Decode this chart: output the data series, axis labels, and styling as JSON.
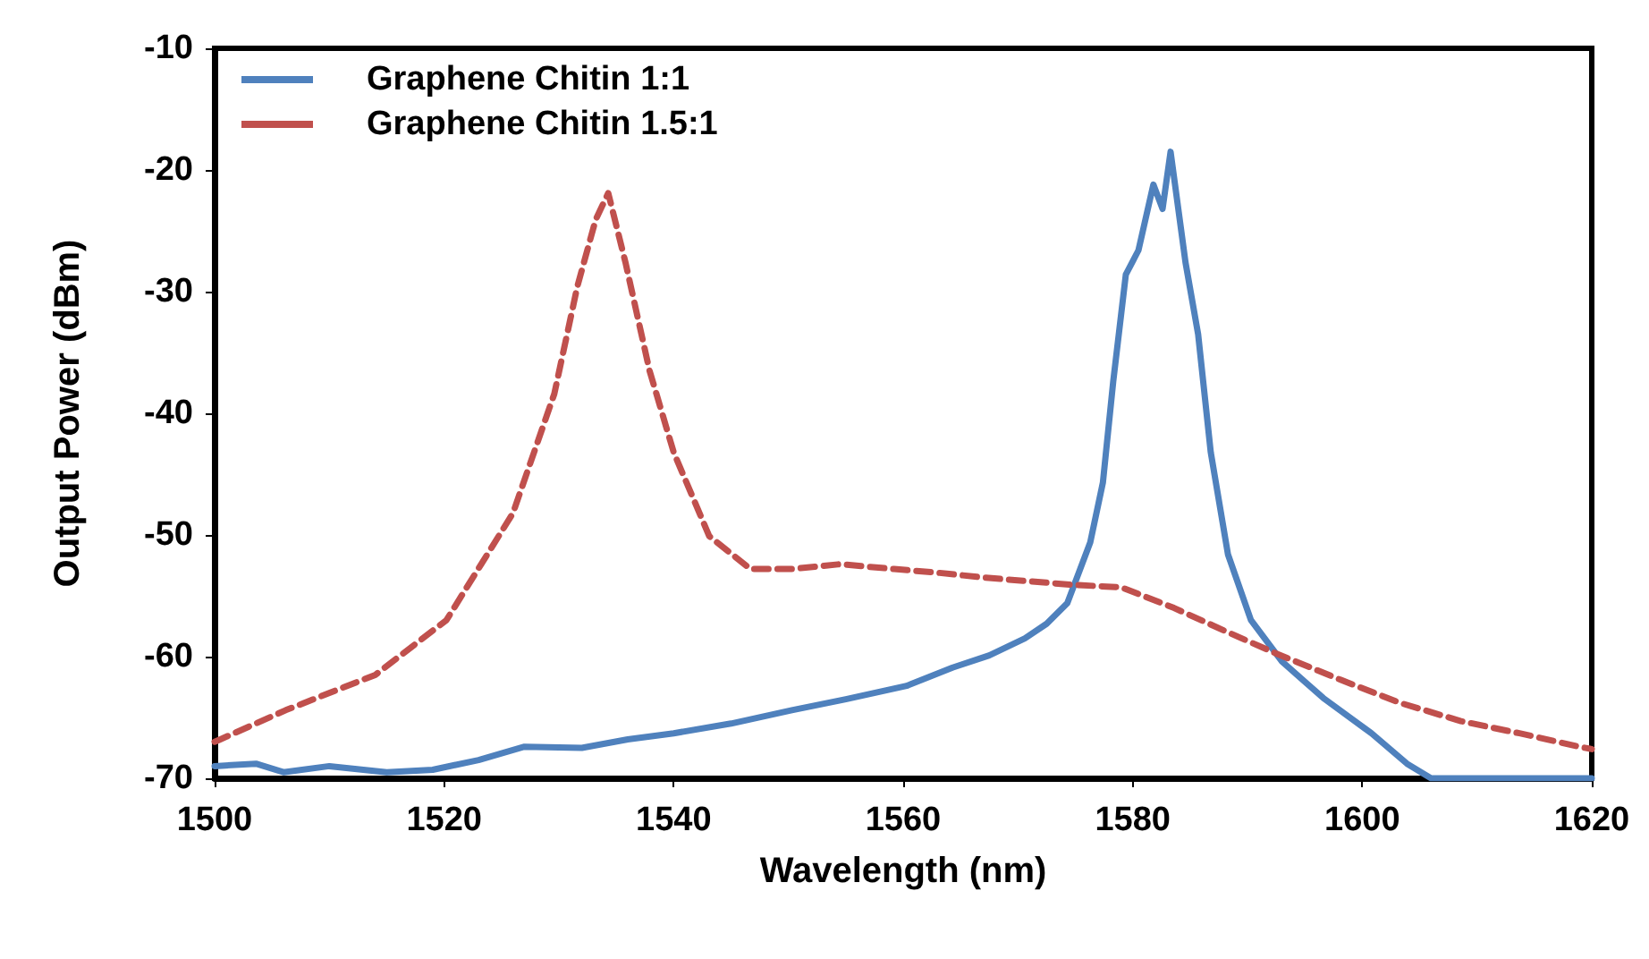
{
  "chart_data": {
    "type": "line",
    "xlabel": "Wavelength (nm)",
    "ylabel": "Output Power (dBm)",
    "xlim": [
      1500,
      1620
    ],
    "xticks": [
      1500,
      1520,
      1540,
      1560,
      1580,
      1600,
      1620
    ],
    "ylim": [
      -70,
      -10
    ],
    "yticks": [
      -70,
      -60,
      -50,
      -40,
      -30,
      -20,
      -10
    ],
    "grid": false,
    "legend": "top left",
    "marker": "none",
    "series": [
      {
        "name": "Graphene Chitin 1:1",
        "color": "#4f81bd",
        "line_style": "solid",
        "x": [
          1500,
          1503.6,
          1506,
          1510,
          1515,
          1519,
          1523,
          1527,
          1532,
          1536,
          1540,
          1545,
          1550.3,
          1555,
          1560.3,
          1564.3,
          1567.5,
          1570.6,
          1572.5,
          1574.3,
          1576.3,
          1577.4,
          1578.3,
          1579.4,
          1580.5,
          1581.8,
          1582.6,
          1583.3,
          1584.6,
          1585.7,
          1586.8,
          1588.3,
          1590.3,
          1593,
          1596.6,
          1600.8,
          1603.9,
          1606,
          1610,
          1615,
          1620
        ],
        "values": [
          -69,
          -68.8,
          -69.5,
          -69,
          -69.5,
          -69.3,
          -68.5,
          -67.4,
          -67.5,
          -66.8,
          -66.3,
          -65.5,
          -64.4,
          -63.5,
          -62.4,
          -60.9,
          -59.9,
          -58.5,
          -57.3,
          -55.6,
          -50.6,
          -45.7,
          -37.4,
          -28.6,
          -26.6,
          -21.2,
          -23.2,
          -18.5,
          -27.6,
          -33.5,
          -43.2,
          -51.6,
          -57,
          -60.4,
          -63.4,
          -66.3,
          -68.8,
          -70,
          -70,
          -70,
          -70
        ]
      },
      {
        "name": "Graphene Chitin 1.5:1",
        "color": "#c0504d",
        "line_style": "dashed",
        "x": [
          1500,
          1500.5,
          1506.2,
          1514,
          1520.2,
          1526,
          1529.6,
          1531.6,
          1533.2,
          1534.3,
          1535.8,
          1537.9,
          1540,
          1543.1,
          1546.7,
          1550.3,
          1554.5,
          1559.2,
          1563,
          1567,
          1574.8,
          1579,
          1583.6,
          1588.3,
          1592.4,
          1598.1,
          1603.3,
          1608.6,
          1613.7,
          1618.9,
          1620
        ],
        "values": [
          -67,
          -66.8,
          -64.4,
          -61.5,
          -57,
          -48.2,
          -38.4,
          -29.6,
          -24.1,
          -21.9,
          -27.6,
          -36.5,
          -43.2,
          -50.1,
          -52.8,
          -52.8,
          -52.4,
          -52.8,
          -53.1,
          -53.5,
          -54.1,
          -54.3,
          -56,
          -58,
          -59.7,
          -61.9,
          -63.8,
          -65.3,
          -66.3,
          -67.4,
          -67.6
        ]
      }
    ]
  }
}
